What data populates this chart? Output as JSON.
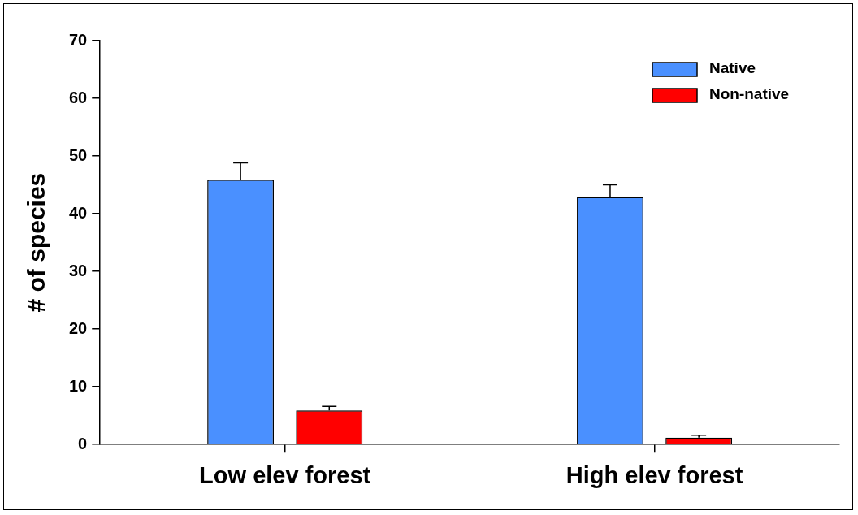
{
  "chart_data": {
    "type": "bar",
    "ylabel": "# of species",
    "categories": [
      "Low elev forest",
      "High elev forest"
    ],
    "series": [
      {
        "name": "Native",
        "color": "#4a90ff",
        "values": [
          45.9,
          42.9
        ],
        "errors": [
          [
            45.9,
            48.8
          ],
          [
            42.9,
            45.0
          ]
        ]
      },
      {
        "name": "Non-native",
        "color": "#ff0000",
        "values": [
          5.9,
          1.2
        ],
        "errors": [
          [
            5.9,
            6.6
          ],
          [
            1.2,
            1.6
          ]
        ]
      }
    ],
    "ylim": [
      0,
      70
    ],
    "yticks": [
      0,
      10,
      20,
      30,
      40,
      50,
      60,
      70
    ],
    "grid": false,
    "legend": "top right"
  }
}
